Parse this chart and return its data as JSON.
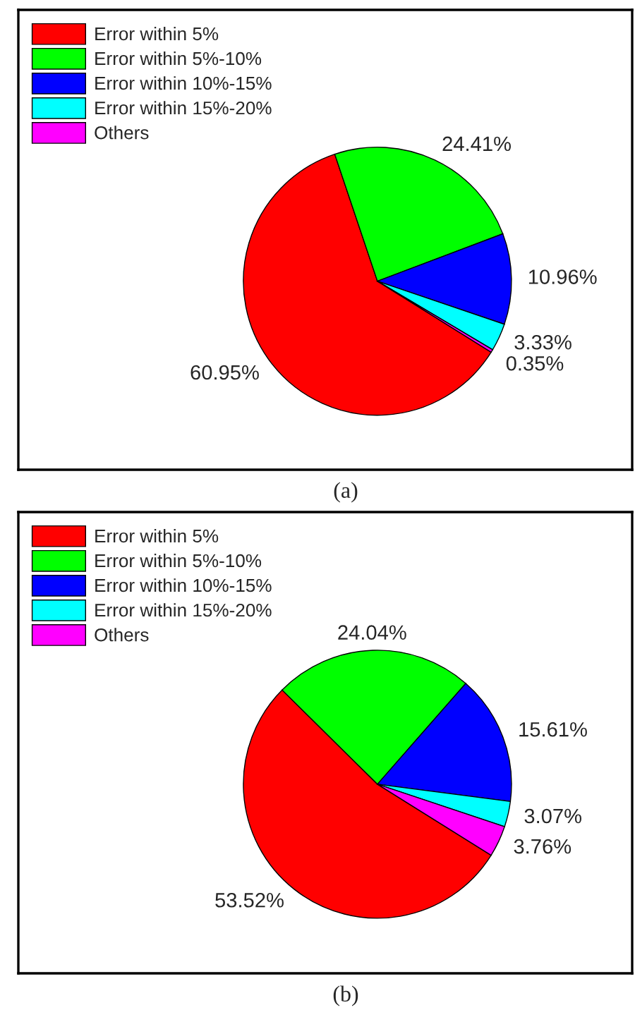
{
  "chart_data": [
    {
      "type": "pie",
      "categories": [
        "Error within 5%",
        "Error within 5%-10%",
        "Error within 10%-15%",
        "Error within 15%-20%",
        "Others"
      ],
      "values": [
        60.95,
        24.41,
        10.96,
        3.33,
        0.35
      ],
      "colors": [
        "#ff0000",
        "#00ff00",
        "#0000ff",
        "#00ffff",
        "#ff00ff"
      ],
      "value_labels": [
        "60.95%",
        "24.41%",
        "10.96%",
        "3.33%",
        "0.35%"
      ],
      "legend": "top left",
      "annotations": [
        "(a)"
      ]
    },
    {
      "type": "pie",
      "categories": [
        "Error within 5%",
        "Error within 5%-10%",
        "Error within 10%-15%",
        "Error within 15%-20%",
        "Others"
      ],
      "values": [
        53.52,
        24.04,
        15.61,
        3.07,
        3.76
      ],
      "colors": [
        "#ff0000",
        "#00ff00",
        "#0000ff",
        "#00ffff",
        "#ff00ff"
      ],
      "value_labels": [
        "53.52%",
        "24.04%",
        "15.61%",
        "3.07%",
        "3.76%"
      ],
      "legend": "top left",
      "annotations": [
        "(b)"
      ]
    }
  ]
}
